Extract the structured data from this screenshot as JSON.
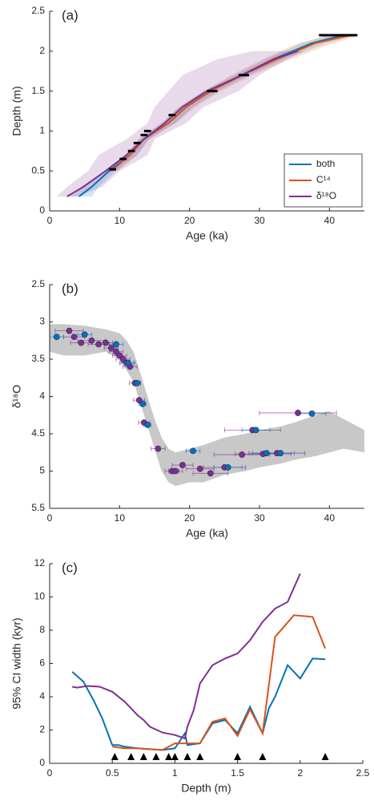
{
  "chart_data": [
    {
      "type": "line",
      "label": "(a)",
      "xlabel": "Age (ka)",
      "ylabel": "Depth (m)",
      "xlim": [
        0,
        45
      ],
      "xticks": [
        0,
        10,
        20,
        30,
        40
      ],
      "ylim": [
        0,
        2.5
      ],
      "yticks": [
        0,
        0.5,
        1,
        1.5,
        2,
        2.5
      ],
      "legend": "lower right",
      "series": [
        {
          "name": "both",
          "color": "#0072BD",
          "values": [
            0.18,
            0.3,
            0.5,
            0.7,
            0.9,
            1.1,
            1.3,
            1.5,
            1.7,
            1.9,
            2.1,
            2.2
          ],
          "x": [
            4.2,
            6,
            8.5,
            11.5,
            13.5,
            17,
            19.5,
            23,
            27.5,
            32,
            37.5,
            42
          ],
          "band_x_lower": [
            3,
            5,
            8,
            11,
            12.8,
            16,
            18.5,
            22,
            26.5,
            31,
            36,
            40
          ],
          "band_x_upper": [
            6,
            7,
            9.5,
            12.5,
            14.2,
            18,
            20.5,
            24,
            28.5,
            33.5,
            39.5,
            44
          ]
        },
        {
          "name": "C¹⁴",
          "color": "#D95319",
          "values": [
            0.5,
            0.7,
            0.9,
            1.1,
            1.3,
            1.5,
            1.7,
            1.9,
            2.1,
            2.2
          ],
          "x": [
            8.8,
            11.5,
            13.5,
            17,
            19.5,
            23,
            27.5,
            32.5,
            38,
            43
          ],
          "band_x_lower": [
            8,
            10.8,
            12.8,
            16,
            18.5,
            22,
            26,
            30.5,
            35.5,
            40
          ],
          "band_x_upper": [
            9.8,
            12.5,
            14.3,
            18,
            20.8,
            24.5,
            29,
            34.5,
            40.5,
            44.5
          ]
        },
        {
          "name": "δ¹⁸O",
          "color": "#7E2F8E",
          "values": [
            0.18,
            0.3,
            0.5,
            0.7,
            0.9,
            1.1,
            1.3,
            1.5,
            1.7,
            1.9,
            2.0
          ],
          "x": [
            2.5,
            4.8,
            8,
            11,
            13.5,
            16.5,
            19,
            22.5,
            27.5,
            32,
            35.5
          ],
          "band_x_lower": [
            1,
            2.5,
            5.5,
            7,
            11,
            14,
            15,
            17,
            19,
            24,
            29
          ],
          "band_x_upper": [
            4,
            7.5,
            10,
            14,
            15,
            19.5,
            22,
            27,
            30,
            34,
            36.5
          ]
        }
      ],
      "dates": [
        {
          "depth": 0.52,
          "age_min": 8.5,
          "age_max": 9.5
        },
        {
          "depth": 0.65,
          "age_min": 10,
          "age_max": 11
        },
        {
          "depth": 0.75,
          "age_min": 11.2,
          "age_max": 12.2
        },
        {
          "depth": 0.85,
          "age_min": 12,
          "age_max": 13
        },
        {
          "depth": 0.95,
          "age_min": 13,
          "age_max": 14
        },
        {
          "depth": 1.0,
          "age_min": 13.5,
          "age_max": 14.5
        },
        {
          "depth": 1.2,
          "age_min": 17,
          "age_max": 18
        },
        {
          "depth": 1.5,
          "age_min": 22.5,
          "age_max": 24
        },
        {
          "depth": 1.7,
          "age_min": 27,
          "age_max": 28.5
        },
        {
          "depth": 2.2,
          "age_min": 38.5,
          "age_max": 44
        }
      ]
    },
    {
      "type": "scatter",
      "label": "(b)",
      "xlabel": "Age (ka)",
      "ylabel": "δ¹⁸O",
      "xlim": [
        0,
        45
      ],
      "xticks": [
        0,
        10,
        20,
        30,
        40
      ],
      "ylim": [
        2.5,
        5.5
      ],
      "y_reversed": true,
      "yticks": [
        2.5,
        3,
        3.5,
        4,
        4.5,
        5,
        5.5
      ],
      "band": {
        "color": "#c8c8c8",
        "x": [
          0,
          2,
          5,
          8,
          10,
          11,
          12,
          13,
          14,
          15,
          16,
          17,
          18,
          20,
          22,
          25,
          28,
          30,
          33,
          35,
          38,
          40,
          42,
          45
        ],
        "lower": [
          3.03,
          3.03,
          3.05,
          3.1,
          3.15,
          3.25,
          3.4,
          3.7,
          4.0,
          4.3,
          4.55,
          4.7,
          4.75,
          4.7,
          4.65,
          4.55,
          4.5,
          4.45,
          4.4,
          4.35,
          4.25,
          4.2,
          4.3,
          4.45
        ],
        "upper": [
          3.4,
          3.45,
          3.45,
          3.4,
          3.5,
          3.65,
          3.8,
          4.1,
          4.4,
          4.7,
          5.0,
          5.15,
          5.2,
          5.15,
          5.15,
          5.05,
          5.0,
          4.95,
          4.9,
          4.85,
          4.8,
          4.75,
          4.7,
          4.75
        ]
      },
      "series": [
        {
          "color": "#7E2F8E",
          "x": [
            2.8,
            3.5,
            4.5,
            6,
            7,
            8,
            8.8,
            9.5,
            10,
            10.5,
            11,
            11.5,
            12.2,
            12.8,
            13.5,
            15.5,
            17.5,
            18,
            19,
            21.5,
            23,
            25,
            27.5,
            29,
            30.5,
            32.5,
            35.5
          ],
          "values": [
            3.12,
            3.2,
            3.28,
            3.25,
            3.3,
            3.28,
            3.35,
            3.4,
            3.45,
            3.5,
            3.55,
            3.6,
            3.82,
            4.05,
            4.35,
            4.7,
            5.0,
            5.0,
            4.92,
            4.97,
            5.03,
            4.95,
            4.78,
            4.45,
            4.77,
            4.76,
            4.22
          ],
          "xerr": [
            2,
            1.5,
            1.5,
            2,
            1.5,
            1,
            1,
            1,
            1,
            1,
            1,
            1,
            0.8,
            0.8,
            0.8,
            1,
            1,
            1,
            1.5,
            2,
            2.5,
            3,
            4,
            4,
            4,
            4,
            5.5
          ]
        },
        {
          "color": "#0072BD",
          "x": [
            1,
            5,
            9.5,
            11.2,
            12.5,
            13.3,
            14,
            20.5,
            25.5,
            29.5,
            31,
            33,
            37.5
          ],
          "values": [
            3.2,
            3.17,
            3.3,
            3.55,
            3.82,
            4.1,
            4.38,
            4.73,
            4.95,
            4.45,
            4.76,
            4.76,
            4.23
          ],
          "xerr": [
            1,
            1,
            1,
            1,
            0.5,
            0.5,
            0.5,
            1,
            2,
            2,
            2,
            2,
            2
          ]
        }
      ]
    },
    {
      "type": "line",
      "label": "(c)",
      "xlabel": "Depth (m)",
      "ylabel": "95% CI width (kyr)",
      "xlim": [
        0,
        2.5
      ],
      "xticks": [
        0,
        0.5,
        1,
        1.5,
        2,
        2.5
      ],
      "ylim": [
        0,
        12
      ],
      "yticks": [
        0,
        2,
        4,
        6,
        8,
        10,
        12
      ],
      "series": [
        {
          "color": "#0072BD",
          "x": [
            0.18,
            0.27,
            0.35,
            0.42,
            0.5,
            0.55,
            0.6,
            0.7,
            0.8,
            0.9,
            0.95,
            1.0,
            1.08,
            1.1,
            1.2,
            1.3,
            1.4,
            1.5,
            1.6,
            1.7,
            1.75,
            1.8,
            1.9,
            2.0,
            2.1,
            2.2
          ],
          "values": [
            5.5,
            4.9,
            3.8,
            2.7,
            1.1,
            1.1,
            1.0,
            0.9,
            0.85,
            0.8,
            0.85,
            0.9,
            1.8,
            1.1,
            1.2,
            2.4,
            2.6,
            1.8,
            3.4,
            1.8,
            3.3,
            4.0,
            5.9,
            5.1,
            6.3,
            6.25
          ]
        },
        {
          "color": "#D95319",
          "x": [
            0.5,
            0.6,
            0.7,
            0.8,
            0.9,
            0.95,
            1.0,
            1.08,
            1.2,
            1.3,
            1.4,
            1.5,
            1.6,
            1.7,
            1.8,
            1.95,
            2.1,
            2.2
          ],
          "values": [
            1.0,
            0.9,
            0.9,
            0.85,
            0.8,
            1.0,
            1.2,
            1.2,
            1.2,
            2.5,
            2.7,
            1.65,
            3.25,
            1.8,
            7.6,
            8.9,
            8.8,
            6.9
          ]
        },
        {
          "color": "#7E2F8E",
          "x": [
            0.18,
            0.22,
            0.3,
            0.4,
            0.5,
            0.6,
            0.7,
            0.75,
            0.8,
            0.9,
            1.0,
            1.08,
            1.1,
            1.15,
            1.2,
            1.3,
            1.4,
            1.5,
            1.6,
            1.7,
            1.8,
            1.9,
            2.0
          ],
          "values": [
            4.6,
            4.55,
            4.65,
            4.6,
            4.3,
            3.7,
            2.9,
            2.6,
            2.2,
            1.85,
            1.7,
            1.5,
            2.2,
            3.2,
            4.8,
            5.9,
            6.3,
            6.6,
            7.4,
            8.5,
            9.3,
            9.7,
            11.4
          ]
        }
      ],
      "markers": {
        "color": "#000000",
        "x": [
          0.52,
          0.65,
          0.75,
          0.85,
          0.95,
          1.0,
          1.1,
          1.2,
          1.5,
          1.7,
          2.2
        ]
      }
    }
  ]
}
